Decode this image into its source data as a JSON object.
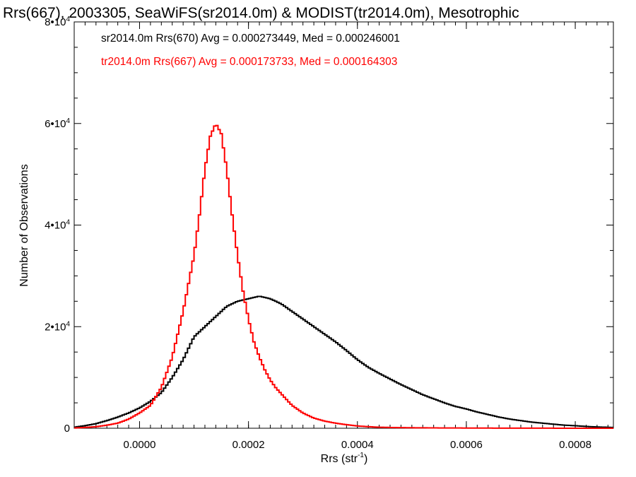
{
  "chart_data": {
    "type": "line",
    "title": "Rrs(667), 2003305, SeaWiFS(sr2014.0m) & MODIST(tr2014.0m), Mesotrophic",
    "xlabel": "Rrs (str",
    "xlabel_sup": "-1",
    "xlabel_close": ")",
    "ylabel": "Number of Observations",
    "xlim": [
      -0.00012,
      0.00087
    ],
    "ylim": [
      0,
      80000
    ],
    "x_ticks": [
      {
        "value": 0.0,
        "label": "0.0000"
      },
      {
        "value": 0.0002,
        "label": "0.0002"
      },
      {
        "value": 0.0004,
        "label": "0.0004"
      },
      {
        "value": 0.0006,
        "label": "0.0006"
      },
      {
        "value": 0.0008,
        "label": "0.0008"
      }
    ],
    "y_ticks": [
      {
        "value": 0,
        "label": "0",
        "sup": ""
      },
      {
        "value": 20000,
        "label": "2•10",
        "sup": "4"
      },
      {
        "value": 40000,
        "label": "4•10",
        "sup": "4"
      },
      {
        "value": 60000,
        "label": "6•10",
        "sup": "4"
      },
      {
        "value": 80000,
        "label": "8•10",
        "sup": "4"
      }
    ],
    "grid": false,
    "series": [
      {
        "name": "sr2014.0m Rrs(670)",
        "color": "#000000",
        "annotation": "sr2014.0m Rrs(670) Avg = 0.000273449, Med = 0.000246001",
        "x": [
          -0.00012,
          -0.0001,
          -8e-05,
          -6e-05,
          -4e-05,
          -2e-05,
          0.0,
          2e-05,
          4e-05,
          6e-05,
          8e-05,
          0.0001,
          0.00012,
          0.00014,
          0.00016,
          0.00018,
          0.0002,
          0.00022,
          0.00024,
          0.00026,
          0.00028,
          0.0003,
          0.00032,
          0.00034,
          0.00036,
          0.00038,
          0.0004,
          0.00042,
          0.00044,
          0.00046,
          0.00048,
          0.0005,
          0.00052,
          0.00054,
          0.00056,
          0.00058,
          0.0006,
          0.00062,
          0.00064,
          0.00066,
          0.00068,
          0.0007,
          0.00072,
          0.00074,
          0.00076,
          0.00078,
          0.0008,
          0.00082,
          0.00084,
          0.00087
        ],
        "y": [
          200,
          500,
          900,
          1500,
          2200,
          3000,
          4000,
          5300,
          7000,
          10000,
          13500,
          18000,
          20000,
          22000,
          24000,
          25000,
          25500,
          26000,
          25500,
          24500,
          23000,
          21500,
          20000,
          18500,
          17000,
          15300,
          13500,
          12000,
          10800,
          9700,
          8600,
          7600,
          6600,
          5800,
          5000,
          4300,
          3800,
          3200,
          2700,
          2200,
          1800,
          1500,
          1200,
          1000,
          800,
          600,
          500,
          350,
          250,
          150
        ]
      },
      {
        "name": "tr2014.0m Rrs(667)",
        "color": "#ff0000",
        "annotation": "tr2014.0m Rrs(667) Avg = 0.000173733, Med = 0.000164303",
        "x": [
          -0.00012,
          -0.0001,
          -8e-05,
          -6e-05,
          -4e-05,
          -2e-05,
          0.0,
          2e-05,
          4e-05,
          6e-05,
          8e-05,
          0.0001,
          0.00011,
          0.00012,
          0.00013,
          0.00014,
          0.00015,
          0.00016,
          0.00017,
          0.00018,
          0.00019,
          0.0002,
          0.00021,
          0.00022,
          0.00023,
          0.00024,
          0.00025,
          0.00026,
          0.00028,
          0.0003,
          0.00032,
          0.00034,
          0.00036,
          0.00038,
          0.0004,
          0.00042,
          0.00044,
          0.00046,
          0.00048,
          0.0005,
          0.00055,
          0.0006,
          0.00065,
          0.0007,
          0.00075,
          0.0008,
          0.00087
        ],
        "y": [
          50,
          150,
          300,
          600,
          1000,
          1800,
          3000,
          4500,
          8000,
          14000,
          23000,
          34000,
          42000,
          51000,
          57500,
          60000,
          58000,
          51000,
          42000,
          34000,
          27000,
          21500,
          17000,
          14000,
          11500,
          9500,
          8000,
          6800,
          4500,
          3000,
          2000,
          1400,
          1000,
          700,
          450,
          300,
          200,
          150,
          120,
          100,
          60,
          40,
          25,
          15,
          10,
          5,
          0
        ]
      }
    ]
  }
}
